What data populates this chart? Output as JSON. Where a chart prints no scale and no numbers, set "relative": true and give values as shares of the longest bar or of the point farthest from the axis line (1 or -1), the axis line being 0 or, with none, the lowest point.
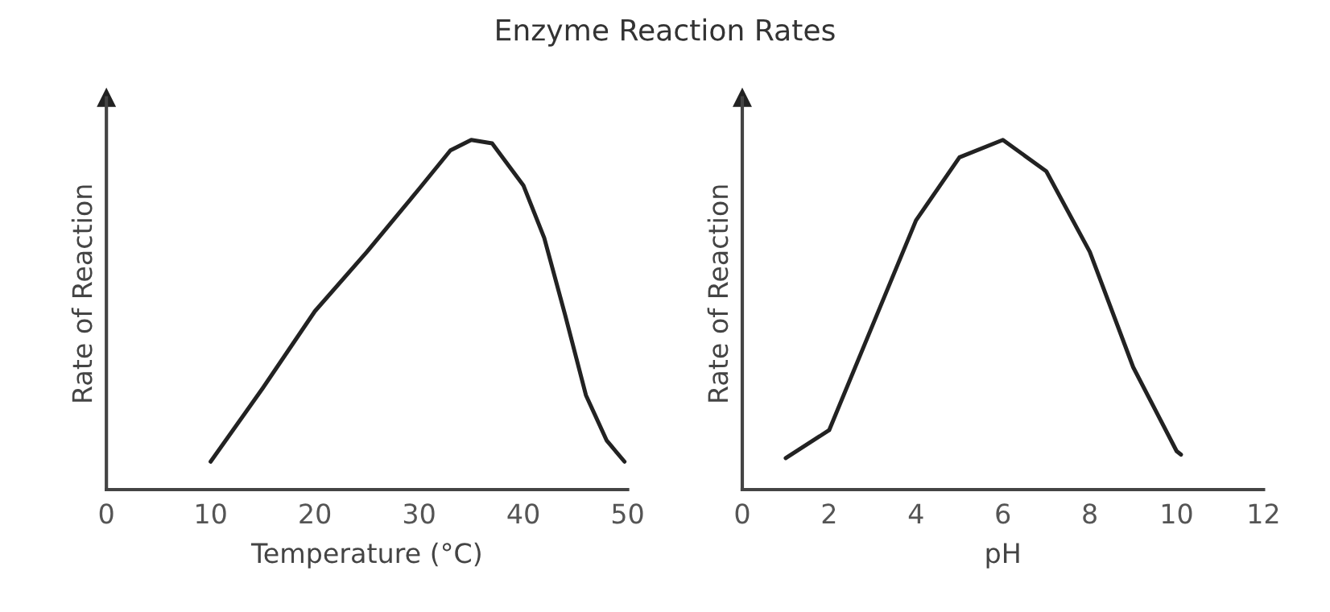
{
  "chart_data": [
    {
      "type": "line",
      "title": "Enzyme Reaction Rates",
      "xlabel": "Temperature (°C)",
      "ylabel": "Rate of Reaction",
      "relative": true,
      "xlim": [
        0,
        50
      ],
      "xticks": [
        0,
        10,
        20,
        30,
        40,
        50
      ],
      "grid": false,
      "legend": false,
      "series": [
        {
          "color": "#222222",
          "x": [
            10,
            15,
            20,
            25,
            30,
            33,
            35,
            37,
            40,
            42,
            44,
            46,
            48,
            49.7
          ],
          "values": [
            0.08,
            0.29,
            0.51,
            0.68,
            0.86,
            0.97,
            1,
            0.99,
            0.87,
            0.72,
            0.5,
            0.27,
            0.14,
            0.08
          ]
        }
      ]
    },
    {
      "type": "line",
      "xlabel": "pH",
      "ylabel": "Rate of Reaction",
      "relative": true,
      "xlim": [
        0,
        12
      ],
      "xticks": [
        0,
        2,
        4,
        6,
        8,
        10,
        12
      ],
      "grid": false,
      "legend": false,
      "series": [
        {
          "color": "#222222",
          "x": [
            1,
            2,
            3,
            4,
            5,
            6,
            7,
            8,
            9,
            10,
            10.1
          ],
          "values": [
            0.09,
            0.17,
            0.47,
            0.77,
            0.95,
            1,
            0.91,
            0.68,
            0.35,
            0.11,
            0.1
          ]
        }
      ]
    }
  ]
}
